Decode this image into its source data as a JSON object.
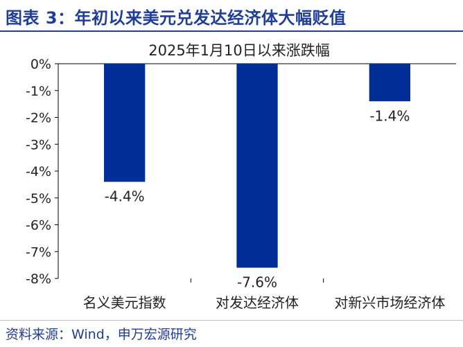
{
  "figure": {
    "title": "图表 3：年初以来美元兑发达经济体大幅贬值",
    "source": "资料来源：Wind，申万宏源研究"
  },
  "colors": {
    "bar": "#002d96",
    "title": "#1f3d99",
    "text": "#222222"
  },
  "chart_data": {
    "type": "bar",
    "title": "2025年1月10日以来涨跌幅",
    "categories": [
      "名义美元指数",
      "对发达经济体",
      "对新兴市场经济体"
    ],
    "values": [
      -4.4,
      -7.6,
      -1.4
    ],
    "value_labels": [
      "-4.4%",
      "-7.6%",
      "-1.4%"
    ],
    "xlabel": "",
    "ylabel": "",
    "ylim": [
      -8,
      0
    ],
    "yticks": [
      0,
      -1,
      -2,
      -3,
      -4,
      -5,
      -6,
      -7,
      -8
    ],
    "ytick_labels": [
      "0%",
      "-1%",
      "-2%",
      "-3%",
      "-4%",
      "-5%",
      "-6%",
      "-7%",
      "-8%"
    ],
    "grid": false,
    "legend": "none"
  }
}
